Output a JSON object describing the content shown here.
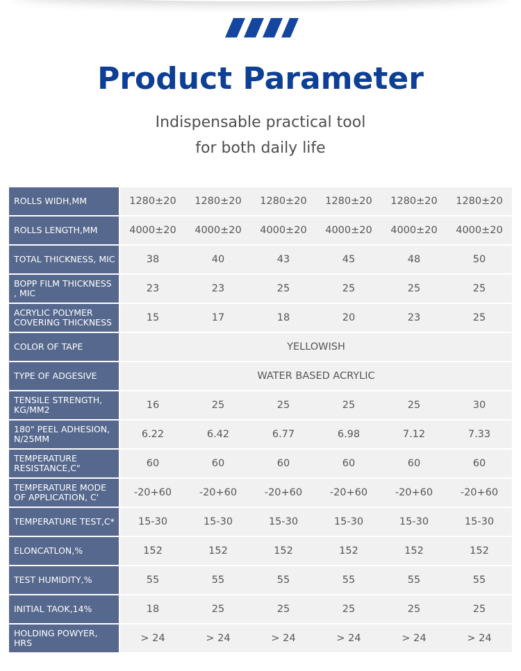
{
  "header": {
    "title": "Product Parameter",
    "subtitle_line1": "Indispensable practical tool",
    "subtitle_line2": "for both daily life"
  },
  "colors": {
    "title": "#0d3f95",
    "logo": "#1446a0",
    "label_bg": "#56688d",
    "cell_bg": "#f1f1f1"
  },
  "table": {
    "rows": [
      {
        "label": "ROLLS WIDH,MM",
        "values": [
          "1280±20",
          "1280±20",
          "1280±20",
          "1280±20",
          "1280±20",
          "1280±20"
        ]
      },
      {
        "label": "ROLLS LENGTH,MM",
        "values": [
          "4000±20",
          "4000±20",
          "4000±20",
          "4000±20",
          "4000±20",
          "4000±20"
        ]
      },
      {
        "label": "TOTAL THICKNESS, MIC",
        "values": [
          "38",
          "40",
          "43",
          "45",
          "48",
          "50"
        ]
      },
      {
        "label": "BOPP FILM THICKNESS , MIC",
        "values": [
          "23",
          "23",
          "25",
          "25",
          "25",
          "25"
        ]
      },
      {
        "label": "ACRYLIC POLYMER COVERING THICKNESS",
        "values": [
          "15",
          "17",
          "18",
          "20",
          "23",
          "25"
        ]
      },
      {
        "label": "COLOR OF TAPE",
        "span": "YELLOWISH"
      },
      {
        "label": "TYPE OF ADGESIVE",
        "span": "WATER BASED ACRYLIC"
      },
      {
        "label": "TENSILE STRENGTH, KG/MM2",
        "values": [
          "16",
          "25",
          "25",
          "25",
          "25",
          "30"
        ]
      },
      {
        "label": "180\" PEEL ADHESION, N/25MM",
        "values": [
          "6.22",
          "6.42",
          "6.77",
          "6.98",
          "7.12",
          "7.33"
        ]
      },
      {
        "label": "TEMPERATURE RESISTANCE,C\"",
        "values": [
          "60",
          "60",
          "60",
          "60",
          "60",
          "60"
        ]
      },
      {
        "label": "TEMPERATURE MODE OF APPLICATION, C'",
        "values": [
          "-20+60",
          "-20+60",
          "-20+60",
          "-20+60",
          "-20+60",
          "-20+60"
        ]
      },
      {
        "label": "TEMPERATURE TEST,C*",
        "values": [
          "15-30",
          "15-30",
          "15-30",
          "15-30",
          "15-30",
          "15-30"
        ]
      },
      {
        "label": "ELONCATLON,%",
        "values": [
          "152",
          "152",
          "152",
          "152",
          "152",
          "152"
        ]
      },
      {
        "label": "TEST HUMIDITY,%",
        "values": [
          "55",
          "55",
          "55",
          "55",
          "55",
          "55"
        ]
      },
      {
        "label": "INITIAL TAOK,14%",
        "values": [
          "18",
          "25",
          "25",
          "25",
          "25",
          "25"
        ]
      },
      {
        "label": "HOLDING POWYER, HRS",
        "values": [
          "> 24",
          "> 24",
          "> 24",
          "> 24",
          "> 24",
          "> 24"
        ]
      }
    ]
  }
}
